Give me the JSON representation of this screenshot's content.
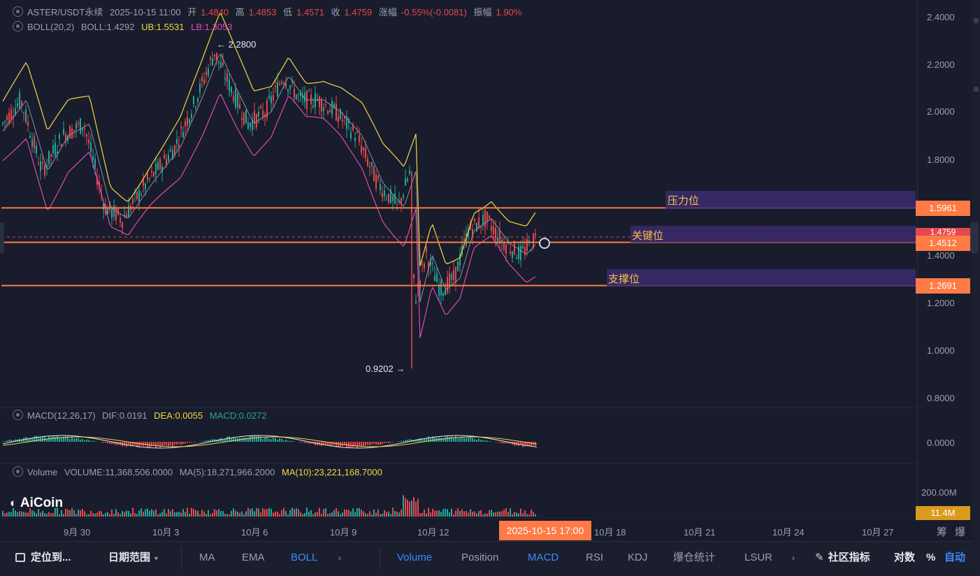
{
  "header": {
    "symbol": "ASTER/USDT永续",
    "datetime": "2025-10-15 11:00",
    "open_label": "开",
    "open": "1.4840",
    "high_label": "高",
    "high": "1.4853",
    "low_label": "低",
    "low": "1.4571",
    "close_label": "收",
    "close": "1.4759",
    "change_label": "涨幅",
    "change": "-0.55%(-0.0081)",
    "amp_label": "振幅",
    "amp": "1.90%"
  },
  "boll": {
    "name": "BOLL(20,2)",
    "mid": "BOLL:1.4292",
    "ub": "UB:1.5531",
    "lb": "LB:1.3053"
  },
  "macd": {
    "name": "MACD(12,26,17)",
    "dif": "DIF:0.0191",
    "dea": "DEA:0.0055",
    "macd": "MACD:0.0272"
  },
  "volume": {
    "name": "Volume",
    "vol": "VOLUME:11,368,506.0000",
    "ma5": "MA(5):18,271,966.2000",
    "ma10": "MA(10):23,221,168.7000"
  },
  "annotations": {
    "high": "2.2800",
    "low": "0.9202"
  },
  "price_ticks": [
    "2.4000",
    "2.2000",
    "2.0000",
    "1.8000",
    "1.4000",
    "1.2000",
    "1.0000",
    "0.8000"
  ],
  "macd_tick": "0.0000",
  "volume_tick": "200.00M",
  "volume_tag": "11.4M",
  "levels": [
    {
      "label": "压力位",
      "price": "1.5961",
      "color": "#ff7a45"
    },
    {
      "label": "关键位",
      "price": "1.4512",
      "color": "#ff7a45"
    },
    {
      "label": "支撑位",
      "price": "1.2691",
      "color": "#ff7a45"
    }
  ],
  "current_price_partial": "1.4759",
  "date_ticks": [
    "9月 30",
    "10月 3",
    "10月 6",
    "10月 9",
    "10月 12",
    "10月 18",
    "10月 21",
    "10月 24",
    "10月 27"
  ],
  "crosshair_date": "2025-10-15 17:00",
  "axis_buttons": [
    "筹",
    "爆"
  ],
  "logo": "AiCoin",
  "toolbar": {
    "locate": "定位到...",
    "date_range": "日期范围",
    "indicators_main": [
      "MA",
      "EMA",
      "BOLL"
    ],
    "indicators_sub": [
      "Volume",
      "Position",
      "MACD",
      "RSI",
      "KDJ",
      "爆仓统计",
      "LSUR"
    ],
    "community": "社区指标",
    "log": "对数",
    "percent": "%",
    "auto": "自动"
  },
  "colors": {
    "up": "#26a69a",
    "down": "#e5484d",
    "ub": "#f5d742",
    "lb": "#e04bb0",
    "mid": "#8a90a6",
    "level": "#ff7a45",
    "accent": "#3d8bfd"
  }
}
